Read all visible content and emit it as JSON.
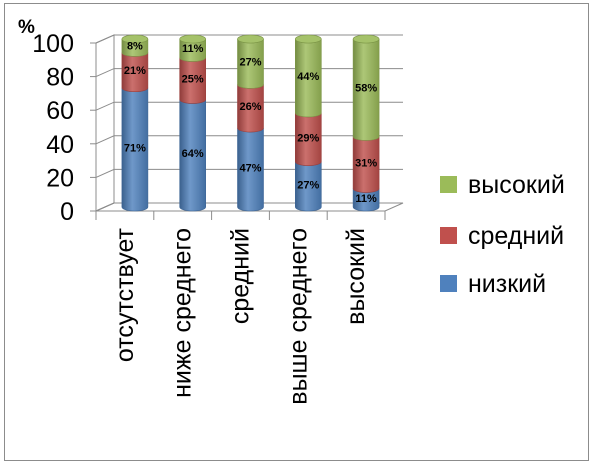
{
  "chart_data": {
    "type": "bar",
    "stacked": true,
    "percent_stacked": true,
    "style": "3d-cylinder",
    "y_unit_label": "%",
    "ylim": [
      0,
      100
    ],
    "y_ticks": [
      0,
      20,
      40,
      60,
      80,
      100
    ],
    "grid": true,
    "legend_position": "right",
    "categories": [
      "отсутствует",
      "ниже среднего",
      "средний",
      "выше среднего",
      "высокий"
    ],
    "series": [
      {
        "name": "низкий",
        "color": "#4f81bd",
        "values": [
          71,
          64,
          47,
          27,
          11
        ],
        "labels": [
          "71%",
          "64%",
          "47%",
          "27%",
          "11%"
        ]
      },
      {
        "name": "средний",
        "color": "#c0504d",
        "values": [
          21,
          25,
          26,
          29,
          31
        ],
        "labels": [
          "21%",
          "25%",
          "26%",
          "29%",
          "31%"
        ]
      },
      {
        "name": "высокий",
        "color": "#9bbb59",
        "values": [
          8,
          11,
          27,
          44,
          58
        ],
        "labels": [
          "8%",
          "11%",
          "27%",
          "44%",
          "58%"
        ]
      }
    ],
    "legend_order": [
      "высокий",
      "средний",
      "низкий"
    ]
  }
}
